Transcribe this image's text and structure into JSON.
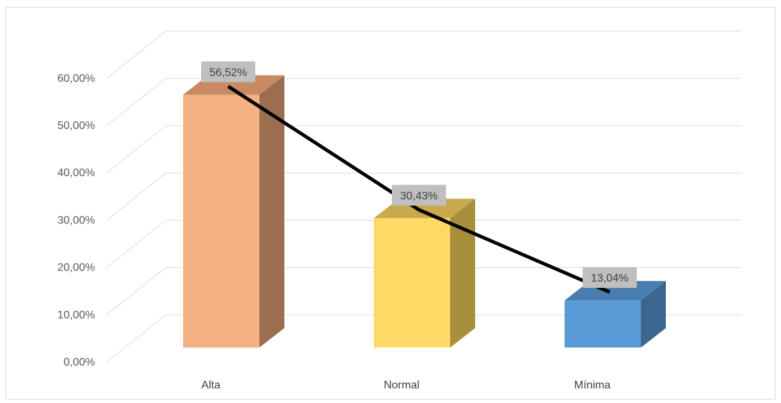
{
  "chart_data": {
    "type": "bar",
    "categories": [
      "Alta",
      "Normal",
      "Mínima"
    ],
    "values": [
      56.52,
      30.43,
      13.04
    ],
    "data_labels": [
      "56,52%",
      "30,43%",
      "13,04%"
    ],
    "y_tick_labels": [
      "0,00%",
      "10,00%",
      "20,00%",
      "30,00%",
      "40,00%",
      "50,00%",
      "60,00%"
    ],
    "ylim": [
      0,
      60
    ],
    "ytick_step": 10,
    "title": "",
    "xlabel": "",
    "ylabel": "",
    "grid": true,
    "legend": "none",
    "three_d": true,
    "trend_line": true,
    "colors": {
      "bars_front": [
        "#F4B183",
        "#FFD966",
        "#5B9BD5"
      ],
      "bars_side": [
        "#9C6E50",
        "#A88F3E",
        "#3A6690"
      ],
      "bars_top": [
        "#C98A63",
        "#C9A94C",
        "#4A7EB0"
      ],
      "grid": "#d9d9d9",
      "line": "#000000",
      "label_bg": "#bfbfbf"
    }
  }
}
